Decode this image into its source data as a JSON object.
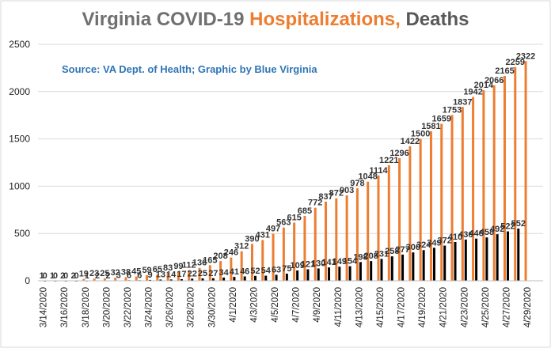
{
  "colors": {
    "title_gray": "#707070",
    "hospitalizations": "#ED7D31",
    "deaths": "#000000",
    "source_blue": "#2E75B6",
    "grid": "#D9D9D9"
  },
  "chart_data": {
    "type": "bar",
    "title_parts": [
      "Virginia COVID-19 ",
      "Hospitalizations, ",
      "Deaths"
    ],
    "annotation": "Source: VA Dept. of Health; Graphic by Blue Virginia",
    "categories": [
      "3/14/2020",
      "3/15/2020",
      "3/16/2020",
      "3/17/2020",
      "3/18/2020",
      "3/19/2020",
      "3/20/2020",
      "3/21/2020",
      "3/22/2020",
      "3/23/2020",
      "3/24/2020",
      "3/25/2020",
      "3/26/2020",
      "3/27/2020",
      "3/28/2020",
      "3/29/2020",
      "3/30/2020",
      "3/31/2020",
      "4/1/2020",
      "4/2/2020",
      "4/3/2020",
      "4/4/2020",
      "4/5/2020",
      "4/6/2020",
      "4/7/2020",
      "4/8/2020",
      "4/9/2020",
      "4/10/2020",
      "4/11/2020",
      "4/12/2020",
      "4/13/2020",
      "4/14/2020",
      "4/15/2020",
      "4/16/2020",
      "4/17/2020",
      "4/18/2020",
      "4/19/2020",
      "4/20/2020",
      "4/21/2020",
      "4/22/2020",
      "4/23/2020",
      "4/24/2020",
      "4/25/2020",
      "4/26/2020",
      "4/27/2020",
      "4/28/2020",
      "4/29/2020",
      "4/30/2020"
    ],
    "xtick_labels": [
      "3/14/2020",
      "3/16/2020",
      "3/18/2020",
      "3/20/2020",
      "3/22/2020",
      "3/24/2020",
      "3/26/2020",
      "3/28/2020",
      "3/30/2020",
      "4/1/2020",
      "4/3/2020",
      "4/5/2020",
      "4/7/2020",
      "4/9/2020",
      "4/11/2020",
      "4/13/2020",
      "4/15/2020",
      "4/17/2020",
      "4/19/2020",
      "4/21/2020",
      "4/23/2020",
      "4/25/2020",
      "4/27/2020",
      "4/29/2020"
    ],
    "series": [
      {
        "values": [
          1,
          1,
          2,
          2,
          19,
          23,
          25,
          32,
          38,
          45,
          59,
          65,
          83,
          99,
          112,
          136,
          165,
          208,
          246,
          312,
          390,
          431,
          497,
          563,
          615,
          685,
          772,
          837,
          872,
          903,
          978,
          1048,
          1114,
          1221,
          1296,
          1422,
          1500,
          1581,
          1659,
          1753,
          1837,
          1942,
          2014,
          2066,
          2165,
          2259,
          2322,
          null
        ]
      },
      {
        "values": [
          0,
          0,
          0,
          0,
          1,
          2,
          2,
          3,
          6,
          6,
          9,
          13,
          14,
          17,
          22,
          25,
          27,
          34,
          41,
          46,
          52,
          54,
          63,
          75,
          109,
          121,
          130,
          141,
          149,
          154,
          198,
          208,
          231,
          258,
          277,
          300,
          324,
          349,
          372,
          410,
          436,
          446,
          458,
          492,
          522,
          552,
          null,
          null
        ]
      }
    ],
    "ylim": [
      0,
      2500
    ],
    "yticks": [
      0,
      500,
      1000,
      1500,
      2000,
      2500
    ],
    "grid": true,
    "legend": "none"
  }
}
